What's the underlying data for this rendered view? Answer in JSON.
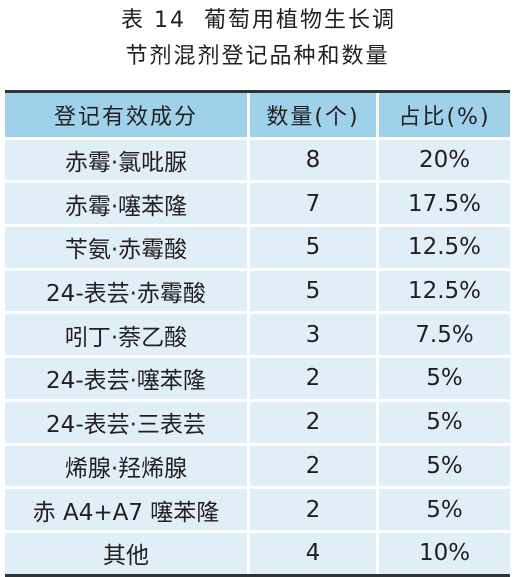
{
  "title": {
    "table_no": "表 14",
    "line1": "葡萄用植物生长调",
    "line2": "节剂混剂登记品种和数量"
  },
  "table": {
    "headers": [
      "登记有效成分",
      "数量(个)",
      "占比(%)"
    ],
    "rows": [
      [
        "赤霉·氯吡脲",
        "8",
        "20%"
      ],
      [
        "赤霉·噻苯隆",
        "7",
        "17.5%"
      ],
      [
        "苄氨·赤霉酸",
        "5",
        "12.5%"
      ],
      [
        "24-表芸·赤霉酸",
        "5",
        "12.5%"
      ],
      [
        "吲丁·萘乙酸",
        "3",
        "7.5%"
      ],
      [
        "24-表芸·噻苯隆",
        "2",
        "5%"
      ],
      [
        "24-表芸·三表芸",
        "2",
        "5%"
      ],
      [
        "烯腺·羟烯腺",
        "2",
        "5%"
      ],
      [
        "赤 A4+A7 噻苯隆",
        "2",
        "5%"
      ],
      [
        "其他",
        "4",
        "10%"
      ]
    ]
  },
  "colors": {
    "header_bg": "#9fd2ea",
    "row_bg": "#dfeef7",
    "rule": "#333333"
  }
}
